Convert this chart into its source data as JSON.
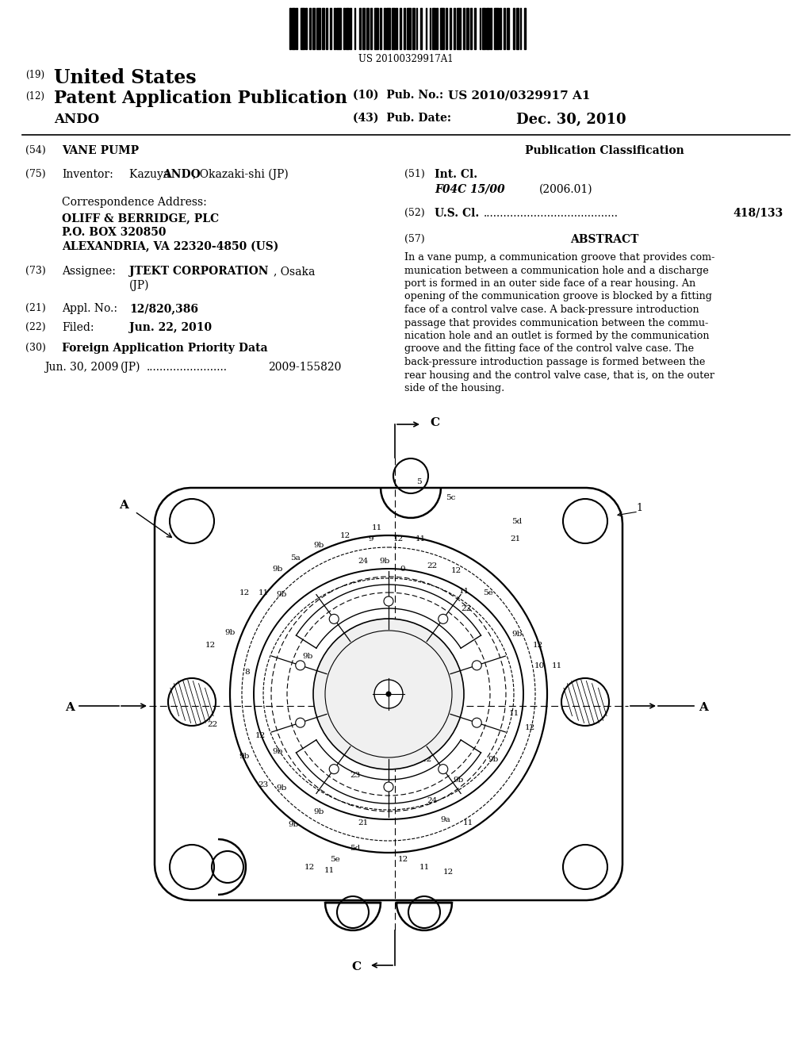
{
  "patent_number_display": "US 20100329917A1",
  "pub_number": "US 2010/0329917 A1",
  "pub_date": "Dec. 30, 2010",
  "inventor": "Kazuya ANDO, Okazaki-shi (JP)",
  "assignee_bold": "JTEKT CORPORATION",
  "assignee_rest": ", Osaka",
  "assignee_jp": "(JP)",
  "appl_no": "12/820,386",
  "filed": "Jun. 22, 2010",
  "intl_cl": "F04C 15/00",
  "intl_cl_date": "(2006.01)",
  "us_cl": "418/133",
  "priority_date": "Jun. 30, 2009",
  "priority_country": "(JP)",
  "priority_number": "2009-155820",
  "abstract": "In a vane pump, a communication groove that provides com-munication between a communication hole and a discharge port is formed in an outer side face of a rear housing. An opening of the communication groove is blocked by a fitting face of a control valve case. A back-pressure introduction passage that provides communication between the commu-nication hole and an outlet is formed by the communication groove and the fitting face of the control valve case. The back-pressure introduction passage is formed between the rear housing and the control valve case, that is, on the outer side of the housing.",
  "bg_color": "#ffffff"
}
